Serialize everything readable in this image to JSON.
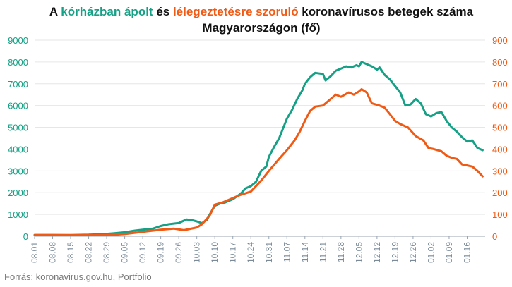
{
  "title": {
    "part1": "A ",
    "green": "kórházban ápolt",
    "part2": " és ",
    "orange": "lélegeztetésre szoruló",
    "part3": " koronavírusos betegek száma Magyarországon  (fő)"
  },
  "source": "Forrás: koronavirus.gov.hu, Portfolio",
  "colors": {
    "hospital": "#16a085",
    "ventilator": "#f05a14",
    "grid": "#e6e6e6"
  },
  "chart_data": {
    "type": "line",
    "title": "A kórházban ápolt és lélegeztetésre szoruló koronavírusos betegek száma Magyarországon  (fő)",
    "x_tick_labels": [
      "08.01",
      "08.08",
      "08.15",
      "08.22",
      "08.29",
      "09.05",
      "09.12",
      "09.19",
      "09.26",
      "10.03",
      "10.10",
      "10.17",
      "10.24",
      "10.31",
      "11.07",
      "11.14",
      "11.21",
      "11.28",
      "12.05",
      "12.12",
      "12.19",
      "12.26",
      "01.02",
      "01.09",
      "01.16"
    ],
    "y_left": {
      "ylim": [
        0,
        9000
      ],
      "ticks": [
        0,
        1000,
        2000,
        3000,
        4000,
        5000,
        6000,
        7000,
        8000,
        9000
      ]
    },
    "y_right": {
      "ylim": [
        0,
        900
      ],
      "ticks": [
        0,
        100,
        200,
        300,
        400,
        500,
        600,
        700,
        800,
        900
      ]
    },
    "grid": true,
    "series": [
      {
        "key": "hospital",
        "axis": "left",
        "color": "#16a085",
        "points": [
          [
            "08.01",
            60
          ],
          [
            "08.08",
            60
          ],
          [
            "08.15",
            55
          ],
          [
            "08.22",
            70
          ],
          [
            "08.29",
            110
          ],
          [
            "09.01",
            140
          ],
          [
            "09.05",
            180
          ],
          [
            "09.09",
            260
          ],
          [
            "09.12",
            300
          ],
          [
            "09.16",
            350
          ],
          [
            "09.19",
            470
          ],
          [
            "09.22",
            550
          ],
          [
            "09.26",
            610
          ],
          [
            "09.29",
            770
          ],
          [
            "10.01",
            740
          ],
          [
            "10.03",
            680
          ],
          [
            "10.05",
            600
          ],
          [
            "10.07",
            760
          ],
          [
            "10.08",
            1000
          ],
          [
            "10.10",
            1400
          ],
          [
            "10.12",
            1500
          ],
          [
            "10.14",
            1550
          ],
          [
            "10.17",
            1700
          ],
          [
            "10.20",
            1950
          ],
          [
            "10.22",
            2200
          ],
          [
            "10.24",
            2300
          ],
          [
            "10.26",
            2500
          ],
          [
            "10.28",
            3000
          ],
          [
            "10.30",
            3200
          ],
          [
            "10.31",
            3650
          ],
          [
            "11.02",
            4100
          ],
          [
            "11.04",
            4500
          ],
          [
            "11.06",
            5100
          ],
          [
            "11.07",
            5400
          ],
          [
            "11.09",
            5800
          ],
          [
            "11.11",
            6300
          ],
          [
            "11.13",
            6700
          ],
          [
            "11.14",
            7000
          ],
          [
            "11.16",
            7300
          ],
          [
            "11.18",
            7500
          ],
          [
            "11.21",
            7450
          ],
          [
            "11.22",
            7150
          ],
          [
            "11.24",
            7350
          ],
          [
            "11.26",
            7600
          ],
          [
            "11.28",
            7700
          ],
          [
            "11.30",
            7800
          ],
          [
            "12.02",
            7750
          ],
          [
            "12.04",
            7850
          ],
          [
            "12.05",
            7800
          ],
          [
            "12.06",
            8000
          ],
          [
            "12.08",
            7900
          ],
          [
            "12.10",
            7800
          ],
          [
            "12.12",
            7650
          ],
          [
            "12.13",
            7750
          ],
          [
            "12.15",
            7400
          ],
          [
            "12.17",
            7200
          ],
          [
            "12.19",
            6900
          ],
          [
            "12.21",
            6600
          ],
          [
            "12.23",
            6000
          ],
          [
            "12.25",
            6050
          ],
          [
            "12.27",
            6300
          ],
          [
            "12.29",
            6100
          ],
          [
            "12.31",
            5600
          ],
          [
            "01.02",
            5500
          ],
          [
            "01.04",
            5650
          ],
          [
            "01.06",
            5700
          ],
          [
            "01.08",
            5300
          ],
          [
            "01.10",
            5000
          ],
          [
            "01.12",
            4800
          ],
          [
            "01.14",
            4550
          ],
          [
            "01.16",
            4350
          ],
          [
            "01.18",
            4400
          ],
          [
            "01.20",
            4050
          ],
          [
            "01.22",
            3950
          ]
        ]
      },
      {
        "key": "ventilator",
        "axis": "right",
        "color": "#f05a14",
        "points": [
          [
            "08.01",
            5
          ],
          [
            "08.08",
            5
          ],
          [
            "08.15",
            5
          ],
          [
            "08.22",
            5
          ],
          [
            "08.29",
            5
          ],
          [
            "09.05",
            10
          ],
          [
            "09.12",
            20
          ],
          [
            "09.19",
            30
          ],
          [
            "09.24",
            35
          ],
          [
            "09.28",
            28
          ],
          [
            "10.03",
            40
          ],
          [
            "10.05",
            55
          ],
          [
            "10.08",
            95
          ],
          [
            "10.10",
            145
          ],
          [
            "10.13",
            155
          ],
          [
            "10.17",
            175
          ],
          [
            "10.20",
            190
          ],
          [
            "10.24",
            205
          ],
          [
            "10.28",
            255
          ],
          [
            "10.31",
            300
          ],
          [
            "11.04",
            355
          ],
          [
            "11.07",
            395
          ],
          [
            "11.10",
            440
          ],
          [
            "11.12",
            480
          ],
          [
            "11.14",
            530
          ],
          [
            "11.16",
            575
          ],
          [
            "11.18",
            595
          ],
          [
            "11.21",
            600
          ],
          [
            "11.24",
            630
          ],
          [
            "11.26",
            650
          ],
          [
            "11.28",
            640
          ],
          [
            "12.01",
            660
          ],
          [
            "12.03",
            650
          ],
          [
            "12.05",
            665
          ],
          [
            "12.06",
            675
          ],
          [
            "12.08",
            660
          ],
          [
            "12.10",
            610
          ],
          [
            "12.13",
            600
          ],
          [
            "12.15",
            590
          ],
          [
            "12.17",
            560
          ],
          [
            "12.19",
            530
          ],
          [
            "12.21",
            515
          ],
          [
            "12.24",
            500
          ],
          [
            "12.27",
            460
          ],
          [
            "12.30",
            440
          ],
          [
            "01.01",
            405
          ],
          [
            "01.03",
            400
          ],
          [
            "01.06",
            390
          ],
          [
            "01.08",
            370
          ],
          [
            "01.10",
            360
          ],
          [
            "01.12",
            355
          ],
          [
            "01.14",
            330
          ],
          [
            "01.16",
            325
          ],
          [
            "01.18",
            320
          ],
          [
            "01.20",
            300
          ],
          [
            "01.22",
            275
          ]
        ]
      }
    ]
  }
}
